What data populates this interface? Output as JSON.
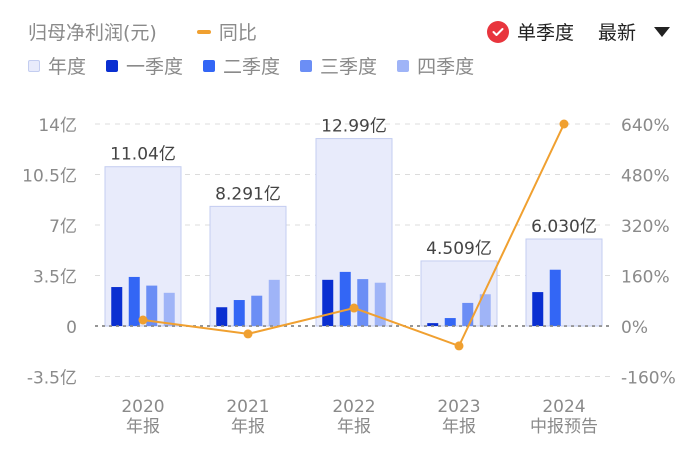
{
  "header": {
    "metric_label": "归母净利润(元)",
    "yoy_label": "同比",
    "single_quarter_label": "单季度",
    "latest_label": "最新"
  },
  "legend": [
    {
      "label": "年度",
      "color": "#e8ebfb"
    },
    {
      "label": "一季度",
      "color": "#0a2fd1"
    },
    {
      "label": "二季度",
      "color": "#3366f5"
    },
    {
      "label": "三季度",
      "color": "#6b8ef5"
    },
    {
      "label": "四季度",
      "color": "#9fb4f7"
    }
  ],
  "colors": {
    "annual": "#e8ebfb",
    "annual_border": "#c3cdf0",
    "q1": "#0a2fd1",
    "q2": "#3366f5",
    "q3": "#6b8ef5",
    "q4": "#9fb4f7",
    "yoy": "#f0a030",
    "check": "#e8353d"
  },
  "chart_data": {
    "type": "bar",
    "title": "归母净利润(元)",
    "categories": [
      "2020 年报",
      "2021 年报",
      "2022 年报",
      "2023 年报",
      "2024 中报预告"
    ],
    "category_lines": [
      [
        "2020",
        "年报"
      ],
      [
        "2021",
        "年报"
      ],
      [
        "2022",
        "年报"
      ],
      [
        "2023",
        "年报"
      ],
      [
        "2024",
        "中报预告"
      ]
    ],
    "series": [
      {
        "name": "年度",
        "values": [
          11.04,
          8.291,
          12.99,
          4.509,
          6.03
        ],
        "labels": [
          "11.04亿",
          "8.291亿",
          "12.99亿",
          "4.509亿",
          "6.030亿"
        ],
        "unit": "亿"
      },
      {
        "name": "一季度",
        "values": [
          2.7,
          1.3,
          3.2,
          0.2,
          2.35
        ],
        "unit": "亿"
      },
      {
        "name": "二季度",
        "values": [
          3.4,
          1.8,
          3.75,
          0.55,
          3.9
        ],
        "unit": "亿"
      },
      {
        "name": "三季度",
        "values": [
          2.8,
          2.1,
          3.25,
          1.6,
          null
        ],
        "unit": "亿"
      },
      {
        "name": "四季度",
        "values": [
          2.3,
          3.2,
          3.0,
          2.2,
          null
        ],
        "unit": "亿"
      },
      {
        "name": "同比",
        "type": "line",
        "axis": "right",
        "values": [
          19,
          -25,
          57,
          -63,
          640
        ],
        "unit": "%"
      }
    ],
    "y_left": {
      "ticks": [
        "14亿",
        "10.5亿",
        "7亿",
        "3.5亿",
        "0",
        "-3.5亿"
      ],
      "values": [
        14,
        10.5,
        7,
        3.5,
        0,
        -3.5
      ],
      "range": [
        -3.5,
        14
      ]
    },
    "y_right": {
      "ticks": [
        "640%",
        "480%",
        "320%",
        "160%",
        "0%",
        "-160%"
      ],
      "values": [
        640,
        480,
        320,
        160,
        0,
        -160
      ],
      "range": [
        -160,
        640
      ]
    },
    "grid": true,
    "legend_position": "top-left"
  }
}
